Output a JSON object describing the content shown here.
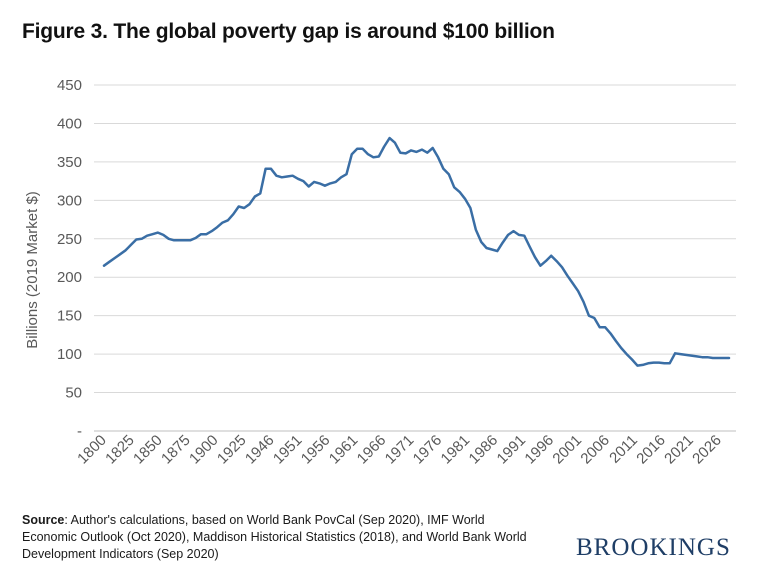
{
  "header": {
    "title": "Figure 3. The global poverty gap is around $100 billion"
  },
  "chart_data": {
    "type": "line",
    "title": "Figure 3. The global poverty gap is around $100 billion",
    "xlabel": "",
    "ylabel": "Billions (2019 Market $)",
    "ylim": [
      0,
      450
    ],
    "grid": true,
    "y_ticks": [
      {
        "value": 0,
        "label": "-"
      },
      {
        "value": 50,
        "label": "50"
      },
      {
        "value": 100,
        "label": "100"
      },
      {
        "value": 150,
        "label": "150"
      },
      {
        "value": 200,
        "label": "200"
      },
      {
        "value": 250,
        "label": "250"
      },
      {
        "value": 300,
        "label": "300"
      },
      {
        "value": 350,
        "label": "350"
      },
      {
        "value": 400,
        "label": "400"
      },
      {
        "value": 450,
        "label": "450"
      }
    ],
    "x_tick_labels": [
      "1800",
      "1825",
      "1850",
      "1875",
      "1900",
      "1925",
      "1946",
      "1951",
      "1956",
      "1961",
      "1966",
      "1971",
      "1976",
      "1981",
      "1986",
      "1991",
      "1996",
      "2001",
      "2006",
      "2011",
      "2016",
      "2021",
      "2026"
    ],
    "line_color": "#3a6ea5",
    "series": [
      {
        "name": "Global poverty gap",
        "values": [
          215,
          220,
          225,
          230,
          235,
          242,
          249,
          250,
          254,
          256,
          258,
          255,
          250,
          248,
          248,
          248,
          248,
          251,
          256,
          256,
          260,
          265,
          271,
          274,
          282,
          292,
          290,
          295,
          305,
          309,
          341,
          341,
          332,
          330,
          331,
          332,
          328,
          325,
          318,
          324,
          322,
          319,
          322,
          324,
          330,
          334,
          360,
          367,
          367,
          360,
          356,
          357,
          370,
          381,
          375,
          362,
          361,
          365,
          363,
          366,
          362,
          368,
          356,
          341,
          334,
          317,
          311,
          302,
          290,
          262,
          246,
          238,
          236,
          234,
          245,
          255,
          260,
          255,
          254,
          240,
          226,
          215,
          221,
          228,
          221,
          213,
          202,
          192,
          182,
          168,
          150,
          147,
          135,
          135,
          127,
          117,
          108,
          100,
          93,
          85,
          86,
          88,
          89,
          89,
          88,
          88,
          101,
          100,
          99,
          98,
          97,
          96,
          96,
          95,
          95,
          95,
          95
        ]
      }
    ]
  },
  "source": {
    "label": "Source",
    "text": ": Author's calculations, based on World Bank PovCal (Sep 2020), IMF World Economic Outlook (Oct 2020), Maddison Historical Statistics (2018), and World Bank World Development Indicators (Sep 2020)"
  },
  "brand": {
    "name": "BROOKINGS"
  }
}
